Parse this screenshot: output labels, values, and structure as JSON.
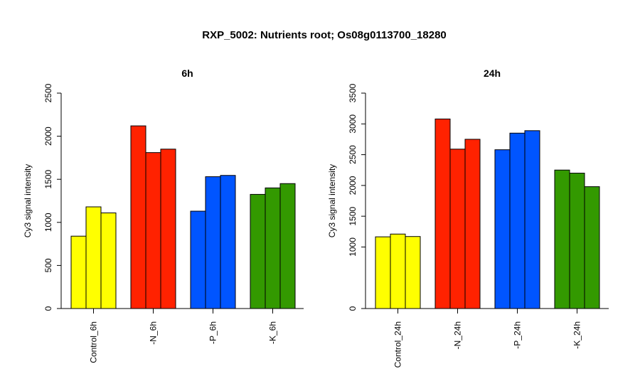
{
  "title": "RXP_5002: Nutrients root; Os08g0113700_18280",
  "chart_data": [
    {
      "type": "bar",
      "title": "6h",
      "ylabel": "Cy3 signal intensity",
      "xlabel": "",
      "ylim": [
        0,
        2500
      ],
      "yticks": [
        0,
        500,
        1000,
        1500,
        2000,
        2500
      ],
      "grid": false,
      "groups": [
        {
          "label": "Control_6h",
          "color": "#ffff00",
          "values": [
            840,
            1180,
            1110
          ]
        },
        {
          "label": "-N_6h",
          "color": "#ff2200",
          "values": [
            2120,
            1810,
            1850
          ]
        },
        {
          "label": "-P_6h",
          "color": "#0055ff",
          "values": [
            1130,
            1530,
            1545
          ]
        },
        {
          "label": "-K_6h",
          "color": "#339900",
          "values": [
            1325,
            1400,
            1450
          ]
        }
      ]
    },
    {
      "type": "bar",
      "title": "24h",
      "ylabel": "Cy3 signal intensity",
      "xlabel": "",
      "ylim": [
        0,
        3500
      ],
      "yticks": [
        0,
        1000,
        1500,
        2000,
        2500,
        3000,
        3500
      ],
      "grid": false,
      "groups": [
        {
          "label": "Control_24h",
          "color": "#ffff00",
          "values": [
            1165,
            1210,
            1170
          ]
        },
        {
          "label": "-N_24h",
          "color": "#ff2200",
          "values": [
            3080,
            2590,
            2750
          ]
        },
        {
          "label": "-P_24h",
          "color": "#0055ff",
          "values": [
            2580,
            2850,
            2890
          ]
        },
        {
          "label": "-K_24h",
          "color": "#339900",
          "values": [
            2250,
            2200,
            1980
          ]
        }
      ]
    }
  ]
}
